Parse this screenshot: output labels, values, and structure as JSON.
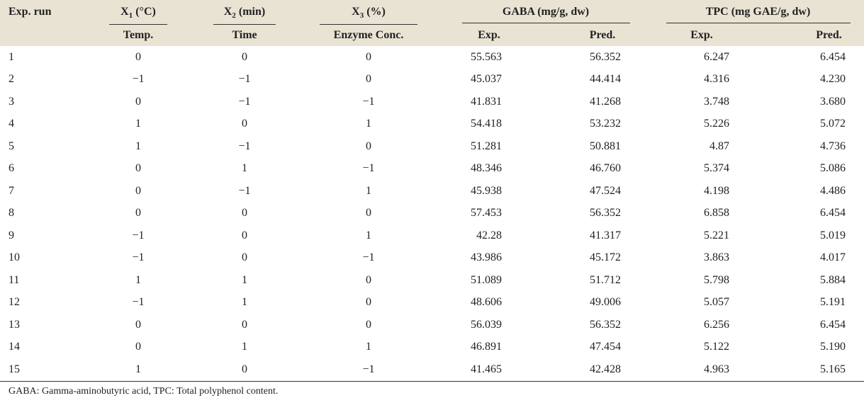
{
  "table": {
    "columns": {
      "run": "Exp. run",
      "groups": [
        {
          "symbol": "X",
          "sub": "1",
          "unit": "(°C)",
          "label": "Temp."
        },
        {
          "symbol": "X",
          "sub": "2",
          "unit": "(min)",
          "label": "Time"
        },
        {
          "symbol": "X",
          "sub": "3",
          "unit": "(%)",
          "label": "Enzyme Conc."
        }
      ],
      "measures": [
        {
          "title": "GABA (mg/g, dw)",
          "sub": [
            "Exp.",
            "Pred."
          ]
        },
        {
          "title": "TPC (mg GAE/g, dw)",
          "sub": [
            "Exp.",
            "Pred."
          ]
        }
      ]
    },
    "rows": [
      [
        "1",
        "0",
        "0",
        "0",
        "55.563",
        "56.352",
        "6.247",
        "6.454"
      ],
      [
        "2",
        "−1",
        "−1",
        "0",
        "45.037",
        "44.414",
        "4.316",
        "4.230"
      ],
      [
        "3",
        "0",
        "−1",
        "−1",
        "41.831",
        "41.268",
        "3.748",
        "3.680"
      ],
      [
        "4",
        "1",
        "0",
        "1",
        "54.418",
        "53.232",
        "5.226",
        "5.072"
      ],
      [
        "5",
        "1",
        "−1",
        "0",
        "51.281",
        "50.881",
        "4.87",
        "4.736"
      ],
      [
        "6",
        "0",
        "1",
        "−1",
        "48.346",
        "46.760",
        "5.374",
        "5.086"
      ],
      [
        "7",
        "0",
        "−1",
        "1",
        "45.938",
        "47.524",
        "4.198",
        "4.486"
      ],
      [
        "8",
        "0",
        "0",
        "0",
        "57.453",
        "56.352",
        "6.858",
        "6.454"
      ],
      [
        "9",
        "−1",
        "0",
        "1",
        "42.28",
        "41.317",
        "5.221",
        "5.019"
      ],
      [
        "10",
        "−1",
        "0",
        "−1",
        "43.986",
        "45.172",
        "3.863",
        "4.017"
      ],
      [
        "11",
        "1",
        "1",
        "0",
        "51.089",
        "51.712",
        "5.798",
        "5.884"
      ],
      [
        "12",
        "−1",
        "1",
        "0",
        "48.606",
        "49.006",
        "5.057",
        "5.191"
      ],
      [
        "13",
        "0",
        "0",
        "0",
        "56.039",
        "56.352",
        "6.256",
        "6.454"
      ],
      [
        "14",
        "0",
        "1",
        "1",
        "46.891",
        "47.454",
        "5.122",
        "5.190"
      ],
      [
        "15",
        "1",
        "0",
        "−1",
        "41.465",
        "42.428",
        "4.963",
        "5.165"
      ]
    ]
  },
  "footnote": "GABA: Gamma-aminobutyric acid, TPC: Total polyphenol content."
}
